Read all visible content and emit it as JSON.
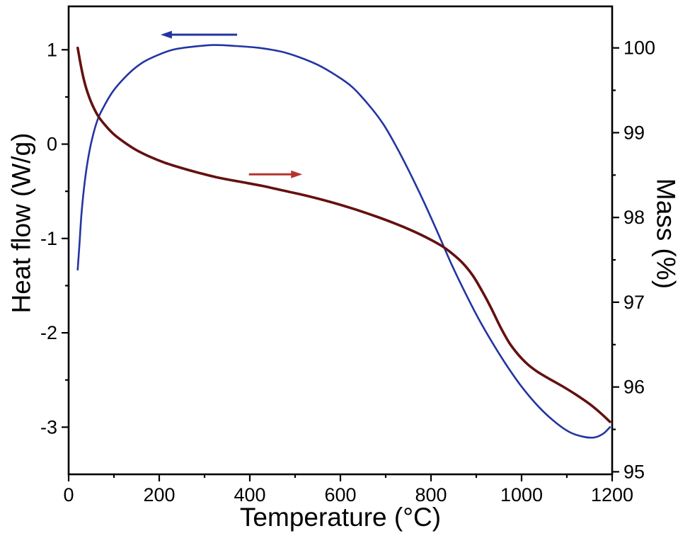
{
  "chart_data": {
    "type": "line",
    "title": "",
    "background": "#ffffff",
    "axis_color": "#000000",
    "xlabel": "Temperature (°C)",
    "ylabel_left": "Heat flow (W/g)",
    "ylabel_right": "Mass (%)",
    "xlim": [
      0,
      1200
    ],
    "x_ticks": [
      0,
      200,
      400,
      600,
      800,
      1000,
      1200
    ],
    "x_minor_step": 100,
    "ylim_left": [
      -3.5,
      1.46
    ],
    "y_left_ticks": [
      1,
      0,
      -1,
      -2,
      -3
    ],
    "y_left_minor_step": 0.5,
    "ylim_right": [
      94.97,
      100.49
    ],
    "y_right_ticks": [
      100,
      99,
      98,
      97,
      96,
      95
    ],
    "y_right_minor_step": 0.5,
    "grid": false,
    "legend": "none",
    "series": [
      {
        "name": "heat-flow",
        "label": "Heat flow",
        "axis": "left",
        "color": "#2335a2",
        "line_width": 2.6,
        "points": [
          [
            20,
            -1.33
          ],
          [
            24,
            -1.05
          ],
          [
            28,
            -0.76
          ],
          [
            34,
            -0.46
          ],
          [
            42,
            -0.18
          ],
          [
            52,
            0.06
          ],
          [
            64,
            0.26
          ],
          [
            78,
            0.4
          ],
          [
            95,
            0.54
          ],
          [
            115,
            0.66
          ],
          [
            140,
            0.78
          ],
          [
            165,
            0.87
          ],
          [
            195,
            0.94
          ],
          [
            230,
            1.0
          ],
          [
            270,
            1.03
          ],
          [
            320,
            1.05
          ],
          [
            370,
            1.04
          ],
          [
            420,
            1.02
          ],
          [
            470,
            0.98
          ],
          [
            510,
            0.92
          ],
          [
            550,
            0.84
          ],
          [
            590,
            0.73
          ],
          [
            625,
            0.61
          ],
          [
            660,
            0.43
          ],
          [
            695,
            0.21
          ],
          [
            725,
            -0.04
          ],
          [
            755,
            -0.32
          ],
          [
            785,
            -0.62
          ],
          [
            815,
            -0.94
          ],
          [
            845,
            -1.27
          ],
          [
            875,
            -1.57
          ],
          [
            905,
            -1.85
          ],
          [
            935,
            -2.1
          ],
          [
            965,
            -2.33
          ],
          [
            1000,
            -2.57
          ],
          [
            1035,
            -2.77
          ],
          [
            1070,
            -2.93
          ],
          [
            1105,
            -3.05
          ],
          [
            1135,
            -3.1
          ],
          [
            1160,
            -3.11
          ],
          [
            1180,
            -3.07
          ],
          [
            1195,
            -3.0
          ]
        ]
      },
      {
        "name": "mass",
        "label": "Mass",
        "axis": "right",
        "color": "#641110",
        "line_width": 3.6,
        "points": [
          [
            20,
            100.0
          ],
          [
            26,
            99.82
          ],
          [
            33,
            99.64
          ],
          [
            42,
            99.47
          ],
          [
            53,
            99.32
          ],
          [
            66,
            99.19
          ],
          [
            82,
            99.08
          ],
          [
            100,
            98.98
          ],
          [
            122,
            98.89
          ],
          [
            148,
            98.8
          ],
          [
            178,
            98.72
          ],
          [
            210,
            98.65
          ],
          [
            245,
            98.59
          ],
          [
            285,
            98.53
          ],
          [
            330,
            98.47
          ],
          [
            380,
            98.42
          ],
          [
            430,
            98.37
          ],
          [
            480,
            98.31
          ],
          [
            530,
            98.25
          ],
          [
            580,
            98.18
          ],
          [
            630,
            98.1
          ],
          [
            680,
            98.01
          ],
          [
            720,
            97.93
          ],
          [
            760,
            97.84
          ],
          [
            795,
            97.75
          ],
          [
            825,
            97.66
          ],
          [
            850,
            97.56
          ],
          [
            872,
            97.45
          ],
          [
            893,
            97.31
          ],
          [
            913,
            97.13
          ],
          [
            933,
            96.93
          ],
          [
            953,
            96.71
          ],
          [
            973,
            96.52
          ],
          [
            993,
            96.38
          ],
          [
            1013,
            96.27
          ],
          [
            1035,
            96.18
          ],
          [
            1060,
            96.1
          ],
          [
            1090,
            96.01
          ],
          [
            1120,
            95.91
          ],
          [
            1150,
            95.8
          ],
          [
            1175,
            95.69
          ],
          [
            1195,
            95.59
          ]
        ]
      }
    ],
    "annotations": [
      {
        "name": "heat-flow-arrow",
        "type": "arrow",
        "axis": "left",
        "color": "#2335a2",
        "line_width": 3,
        "from": [
          372,
          1.16
        ],
        "to": [
          203,
          1.16
        ],
        "direction": "left"
      },
      {
        "name": "mass-arrow",
        "type": "arrow",
        "axis": "left",
        "color": "#b5342e",
        "line_width": 3,
        "from": [
          398,
          -0.32
        ],
        "to": [
          516,
          -0.32
        ],
        "direction": "right"
      }
    ]
  }
}
